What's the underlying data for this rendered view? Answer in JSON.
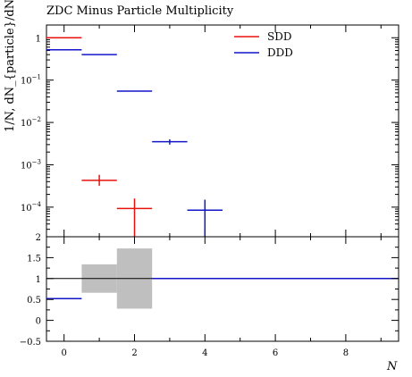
{
  "chart_data": {
    "type": "step-histogram-with-ratio",
    "title": "ZDC Minus Particle Multiplicity",
    "ylabel": "1/N, dN_{particle}/dN",
    "xlabel": "N",
    "legend_position": "top-right",
    "xlim": [
      -0.5,
      9.5
    ],
    "x_ticks": [
      0,
      2,
      4,
      6,
      8
    ],
    "main": {
      "yscale": "log",
      "ylim": [
        2e-05,
        2
      ],
      "y_tick_labels": [
        "10^-4",
        "10^-3",
        "10^-2",
        "10^-1",
        "1"
      ],
      "series": [
        {
          "name": "SDD",
          "color": "#e8120d",
          "bins": [
            {
              "x": [
                -0.5,
                0.5
              ],
              "y": 1.0
            },
            {
              "x": [
                0.5,
                1.5
              ],
              "y": 0.00043,
              "err": [
                0.00032,
                0.00058
              ]
            },
            {
              "x": [
                1.5,
                2.5
              ],
              "y": 9.3e-05,
              "err": [
                2e-05,
                0.00016
              ]
            }
          ]
        },
        {
          "name": "DDD",
          "color": "#1216c8",
          "bins": [
            {
              "x": [
                -0.5,
                0.5
              ],
              "y": 0.52
            },
            {
              "x": [
                0.5,
                1.5
              ],
              "y": 0.4
            },
            {
              "x": [
                1.5,
                2.5
              ],
              "y": 0.055
            },
            {
              "x": [
                2.5,
                3.5
              ],
              "y": 0.0035,
              "err": [
                0.003,
                0.004
              ]
            },
            {
              "x": [
                3.5,
                4.5
              ],
              "y": 8.5e-05,
              "err": [
                2e-05,
                0.00015
              ]
            }
          ]
        }
      ]
    },
    "ratio": {
      "ylim": [
        -0.5,
        2
      ],
      "y_ticks": [
        -0.5,
        0,
        0.5,
        1,
        1.5,
        2
      ],
      "y_tick_labels": [
        "−0.5",
        "0",
        "0.5",
        "1",
        "1.5",
        "2"
      ],
      "reference_line": 1,
      "band_color": "#bfbfbf",
      "bands": [
        {
          "x": [
            0.5,
            1.5
          ],
          "y": [
            0.66,
            1.34
          ]
        },
        {
          "x": [
            1.5,
            2.5
          ],
          "y": [
            0.28,
            1.72
          ]
        }
      ],
      "ddd_ratio": [
        {
          "x": [
            -0.5,
            0.5
          ],
          "y": 0.52
        },
        {
          "x": [
            2.5,
            9.5
          ],
          "y": 1.0
        }
      ]
    }
  }
}
